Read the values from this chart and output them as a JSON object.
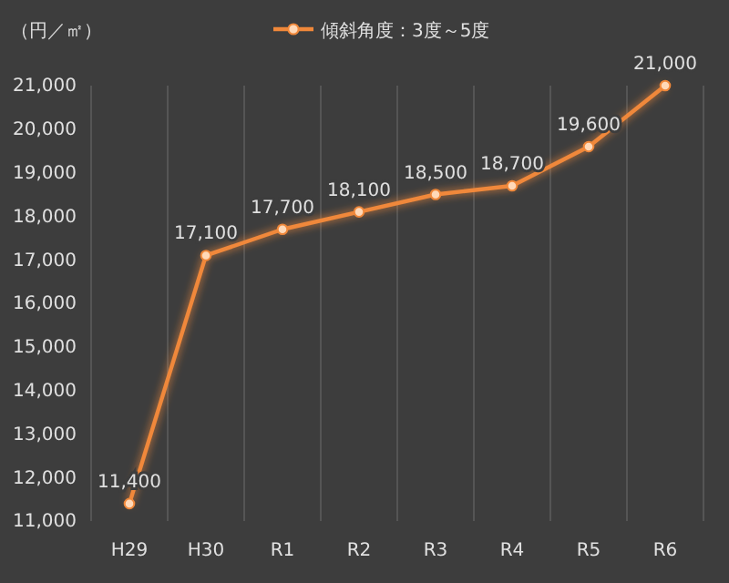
{
  "chart_data": {
    "type": "line",
    "ylabel": "（円／㎡）",
    "categories": [
      "H29",
      "H30",
      "R1",
      "R2",
      "R3",
      "R4",
      "R5",
      "R6"
    ],
    "series": [
      {
        "name": "傾斜角度：3度～5度",
        "color": "#f0883a",
        "values": [
          11400,
          17100,
          17700,
          18100,
          18500,
          18700,
          19600,
          21000
        ]
      }
    ],
    "ylim": [
      11000,
      21000
    ],
    "yticks": [
      {
        "value": 11000,
        "label": "11,000"
      },
      {
        "value": 12000,
        "label": "12,000"
      },
      {
        "value": 13000,
        "label": "13,000"
      },
      {
        "value": 14000,
        "label": "14,000"
      },
      {
        "value": 15000,
        "label": "15,000"
      },
      {
        "value": 16000,
        "label": "16,000"
      },
      {
        "value": 17000,
        "label": "17,000"
      },
      {
        "value": 18000,
        "label": "18,000"
      },
      {
        "value": 19000,
        "label": "19,000"
      },
      {
        "value": 20000,
        "label": "20,000"
      },
      {
        "value": 21000,
        "label": "21,000"
      }
    ],
    "value_labels": [
      "11,400",
      "17,100",
      "17,700",
      "18,100",
      "18,500",
      "18,700",
      "19,600",
      "21,000"
    ],
    "grid": "x",
    "legend": "top",
    "marker": "circle",
    "line_style": "solid"
  }
}
